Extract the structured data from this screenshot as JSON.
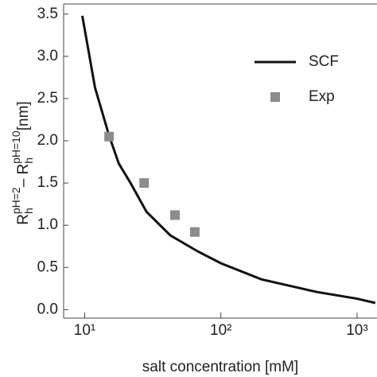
{
  "chart_data": {
    "type": "line-scatter",
    "xlabel": "salt concentration [mM]",
    "ylabel": [
      "R",
      "h",
      "pH=2",
      "– R",
      "h",
      "pH=10",
      "[nm]"
    ],
    "xlog": true,
    "xlim": [
      7,
      1400
    ],
    "ylim": [
      -0.1,
      3.62
    ],
    "xticks": [
      {
        "value": 10,
        "label": "10¹"
      },
      {
        "value": 100,
        "label": "10²"
      },
      {
        "value": 1000,
        "label": "10³"
      }
    ],
    "yticks": [
      {
        "value": 0,
        "label": "0.0"
      },
      0.5,
      {
        "value": 1,
        "label": "1.0"
      },
      1.5,
      {
        "value": 2,
        "label": "2.0"
      },
      2.5,
      {
        "value": 3,
        "label": "3.0"
      },
      3.5
    ],
    "legend": "top-right",
    "series": [
      {
        "name": "SCF",
        "kind": "line",
        "color": "#111111",
        "x": [
          9.6,
          11.9,
          15.1,
          17.8,
          21.7,
          28.4,
          42.5,
          67.7,
          100,
          198,
          505,
          1000,
          1360
        ],
        "values": [
          3.48,
          2.63,
          2.06,
          1.73,
          1.5,
          1.16,
          0.88,
          0.69,
          0.55,
          0.36,
          0.21,
          0.13,
          0.08
        ]
      },
      {
        "name": "Exp",
        "kind": "scatter",
        "color": "#8c8c8c",
        "x": [
          15.1,
          27.3,
          46,
          64.3
        ],
        "values": [
          2.05,
          1.5,
          1.12,
          0.92
        ]
      }
    ]
  }
}
